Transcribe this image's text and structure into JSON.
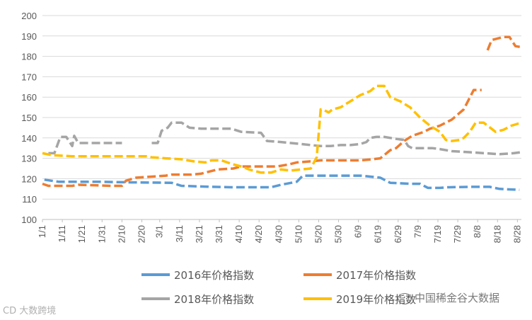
{
  "chart_data": {
    "type": "line",
    "title": "",
    "xlabel": "",
    "ylabel": "",
    "ylim": [
      100,
      200
    ],
    "yticks": [
      100,
      110,
      120,
      130,
      140,
      150,
      160,
      170,
      180,
      190,
      200
    ],
    "xlim": [
      0,
      241
    ],
    "grid": true,
    "legend_position": "bottom",
    "x_tick_labels": [
      {
        "label": "1/1",
        "day": 0
      },
      {
        "label": "1/11",
        "day": 10
      },
      {
        "label": "1/21",
        "day": 20
      },
      {
        "label": "1/31",
        "day": 30
      },
      {
        "label": "2/10",
        "day": 40
      },
      {
        "label": "2/20",
        "day": 50
      },
      {
        "label": "3/1",
        "day": 59
      },
      {
        "label": "3/11",
        "day": 69
      },
      {
        "label": "3/21",
        "day": 79
      },
      {
        "label": "3/31",
        "day": 89
      },
      {
        "label": "4/10",
        "day": 99
      },
      {
        "label": "4/20",
        "day": 109
      },
      {
        "label": "4/30",
        "day": 119
      },
      {
        "label": "5/10",
        "day": 129
      },
      {
        "label": "5/20",
        "day": 139
      },
      {
        "label": "5/30",
        "day": 149
      },
      {
        "label": "6/9",
        "day": 159
      },
      {
        "label": "6/19",
        "day": 169
      },
      {
        "label": "6/29",
        "day": 179
      },
      {
        "label": "7/9",
        "day": 189
      },
      {
        "label": "7/19",
        "day": 199
      },
      {
        "label": "7/29",
        "day": 209
      },
      {
        "label": "8/8",
        "day": 219
      },
      {
        "label": "8/18",
        "day": 229
      },
      {
        "label": "8/28",
        "day": 239
      }
    ],
    "series": [
      {
        "name": "2016年价格指数",
        "color": "#5B9BD5",
        "dashed": true,
        "points": [
          [
            1,
            119.5
          ],
          [
            8,
            118.5
          ],
          [
            28,
            118.5
          ],
          [
            45,
            118.2
          ],
          [
            65,
            118
          ],
          [
            70,
            116.5
          ],
          [
            85,
            116
          ],
          [
            95,
            115.8
          ],
          [
            115,
            115.8
          ],
          [
            120,
            117
          ],
          [
            128,
            118.5
          ],
          [
            131,
            121.5
          ],
          [
            160,
            121.5
          ],
          [
            165,
            121
          ],
          [
            170,
            120.5
          ],
          [
            175,
            118
          ],
          [
            185,
            117.5
          ],
          [
            190,
            117.5
          ],
          [
            194,
            115.5
          ],
          [
            200,
            115.5
          ],
          [
            204,
            115.8
          ],
          [
            215,
            116
          ],
          [
            225,
            116
          ],
          [
            230,
            115
          ],
          [
            240,
            114.5
          ]
        ]
      },
      {
        "name": "2017年价格指数",
        "color": "#ED7D31",
        "dashed": true,
        "points": [
          [
            0,
            117.5
          ],
          [
            3,
            116.5
          ],
          [
            15,
            116.5
          ],
          [
            18,
            117
          ],
          [
            35,
            116.5
          ],
          [
            40,
            116.5
          ],
          [
            42,
            119
          ],
          [
            47,
            120.5
          ],
          [
            55,
            121
          ],
          [
            62,
            121.5
          ],
          [
            65,
            122
          ],
          [
            75,
            122
          ],
          [
            80,
            122.5
          ],
          [
            88,
            124.5
          ],
          [
            96,
            125
          ],
          [
            100,
            126
          ],
          [
            118,
            126
          ],
          [
            121,
            126.5
          ],
          [
            124,
            127
          ],
          [
            128,
            128
          ],
          [
            135,
            128.5
          ],
          [
            140,
            129
          ],
          [
            150,
            129
          ],
          [
            160,
            129
          ],
          [
            166,
            129.5
          ],
          [
            170,
            130
          ],
          [
            175,
            134
          ],
          [
            178,
            135
          ],
          [
            182,
            138.5
          ],
          [
            186,
            141
          ],
          [
            192,
            143
          ],
          [
            195,
            144.5
          ],
          [
            200,
            146
          ],
          [
            206,
            149
          ],
          [
            212,
            154
          ],
          [
            217,
            163.5
          ],
          [
            221,
            163.5
          ]
        ]
      },
      {
        "name": "2017年价格指数-late",
        "color": "#ED7D31",
        "dashed": true,
        "points": [
          [
            224,
            183
          ],
          [
            226,
            188
          ],
          [
            232,
            189.5
          ],
          [
            235,
            189.5
          ],
          [
            238,
            185
          ],
          [
            241,
            184.5
          ]
        ]
      },
      {
        "name": "2018年价格指数",
        "color": "#A5A5A5",
        "dashed": true,
        "points": [
          [
            3,
            132.5
          ],
          [
            6,
            132.5
          ],
          [
            9,
            140.5
          ],
          [
            12,
            140.5
          ],
          [
            15,
            136
          ],
          [
            16,
            141
          ],
          [
            18,
            137.5
          ],
          [
            28,
            137.5
          ],
          [
            40,
            137.5
          ]
        ]
      },
      {
        "name": "2018年价格指数-mid",
        "color": "#A5A5A5",
        "dashed": true,
        "points": [
          [
            55,
            137.5
          ],
          [
            58,
            137.5
          ],
          [
            60,
            143.5
          ],
          [
            63,
            145
          ],
          [
            65,
            147.5
          ],
          [
            70,
            147.5
          ],
          [
            74,
            145
          ],
          [
            80,
            144.5
          ],
          [
            95,
            144.5
          ],
          [
            100,
            143
          ],
          [
            110,
            142.5
          ],
          [
            113,
            138.5
          ],
          [
            120,
            138
          ],
          [
            130,
            137
          ],
          [
            135,
            136.5
          ],
          [
            140,
            136
          ],
          [
            145,
            136
          ],
          [
            150,
            136.5
          ],
          [
            155,
            136.5
          ],
          [
            160,
            137
          ],
          [
            163,
            138
          ],
          [
            165,
            140
          ],
          [
            168,
            140.5
          ],
          [
            172,
            140.5
          ],
          [
            178,
            139.5
          ],
          [
            182,
            139
          ],
          [
            184,
            136
          ],
          [
            186,
            135
          ],
          [
            191,
            135
          ],
          [
            196,
            135
          ],
          [
            200,
            134.5
          ],
          [
            206,
            133.5
          ],
          [
            215,
            133
          ],
          [
            230,
            132
          ],
          [
            237,
            132.5
          ],
          [
            241,
            133
          ]
        ]
      },
      {
        "name": "2019年价格指数",
        "color": "#FFC000",
        "dashed": true,
        "points": [
          [
            0,
            132.5
          ],
          [
            5,
            131.5
          ],
          [
            15,
            131
          ],
          [
            45,
            131
          ],
          [
            52,
            131
          ],
          [
            55,
            130.5
          ],
          [
            62,
            130
          ],
          [
            70,
            129.5
          ],
          [
            76,
            128.5
          ],
          [
            82,
            128
          ],
          [
            85,
            129
          ],
          [
            90,
            129
          ],
          [
            96,
            127
          ],
          [
            100,
            126
          ],
          [
            104,
            124.5
          ],
          [
            110,
            123
          ],
          [
            115,
            123
          ],
          [
            120,
            124.5
          ],
          [
            125,
            124
          ],
          [
            130,
            124.5
          ],
          [
            135,
            125
          ],
          [
            138,
            130.5
          ],
          [
            140,
            154
          ],
          [
            142,
            153.5
          ],
          [
            144,
            152.5
          ],
          [
            146,
            154
          ],
          [
            150,
            155
          ],
          [
            155,
            158
          ],
          [
            160,
            161
          ],
          [
            165,
            163
          ],
          [
            168,
            165.5
          ],
          [
            172,
            165.5
          ],
          [
            175,
            160
          ],
          [
            180,
            158
          ],
          [
            185,
            155
          ],
          [
            190,
            150
          ],
          [
            195,
            146
          ],
          [
            200,
            143
          ],
          [
            203,
            139
          ],
          [
            206,
            138.5
          ],
          [
            210,
            139
          ],
          [
            212,
            140
          ],
          [
            215,
            143
          ],
          [
            218,
            147.5
          ],
          [
            222,
            147.5
          ],
          [
            228,
            143
          ],
          [
            232,
            144
          ],
          [
            236,
            146
          ],
          [
            241,
            147.5
          ]
        ]
      }
    ],
    "legend": [
      {
        "label": "2016年价格指数",
        "color": "#5B9BD5"
      },
      {
        "label": "2017年价格指数",
        "color": "#ED7D31"
      },
      {
        "label": "2018年价格指数",
        "color": "#A5A5A5"
      },
      {
        "label": "2019年价格指数",
        "color": "#FFC000"
      }
    ]
  },
  "watermarks": {
    "left": "CD 大数跨境",
    "right": "中国稀金谷大数据"
  }
}
